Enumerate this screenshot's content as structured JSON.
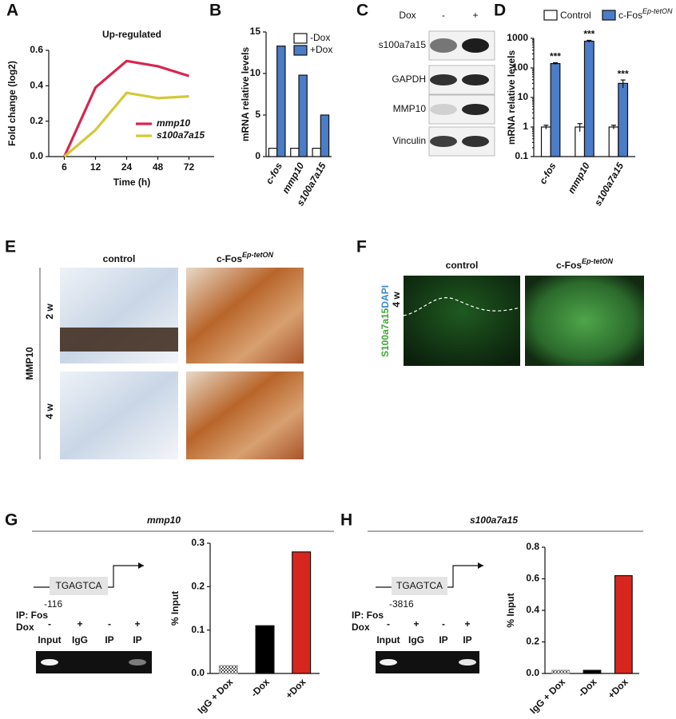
{
  "chart_data": [
    {
      "panel": "A",
      "type": "line",
      "title": "Up-regulated",
      "x_label": "Time (h)",
      "y_label": "Fold change (log2)",
      "categories": [
        "6",
        "12",
        "24",
        "48",
        "72"
      ],
      "ylim": [
        0,
        0.6
      ],
      "yticks": [
        {
          "value": 0,
          "label": "0.0"
        },
        0.2,
        0.4,
        0.6
      ],
      "series": [
        {
          "name": "mmp10",
          "color": "#d7264f",
          "values": [
            0,
            0.39,
            0.54,
            0.51,
            0.455
          ]
        },
        {
          "name": "s100a7a15",
          "color": "#d4c93a",
          "values": [
            0,
            0.15,
            0.36,
            0.33,
            0.34
          ]
        }
      ]
    },
    {
      "panel": "B",
      "type": "bar",
      "y_label": "mRNA relative levels",
      "categories": [
        "c-fos",
        "mmp10",
        "s100a7a15"
      ],
      "ylim": [
        0,
        15
      ],
      "yticks": [
        0,
        5,
        10,
        15
      ],
      "series": [
        {
          "name": "-Dox",
          "color": "#ffffff",
          "values": [
            1,
            1,
            1
          ]
        },
        {
          "name": "+Dox",
          "color": "#4a7cc7",
          "values": [
            13.3,
            9.8,
            5
          ]
        }
      ]
    },
    {
      "panel": "D",
      "type": "bar",
      "log_scale": true,
      "y_label": "mRNA relative levels",
      "categories": [
        "c-fos",
        "mmp10",
        "s100a7a15"
      ],
      "ylim": [
        0.1,
        1000
      ],
      "yticks": [
        0.1,
        1,
        10,
        100,
        1000
      ],
      "series": [
        {
          "name": "Control",
          "color": "#ffffff",
          "values": [
            1,
            1,
            1
          ],
          "errors": [
            0.15,
            0.3,
            0.15
          ]
        },
        {
          "name": "c-Fos",
          "name_superscript": "Ep-tetON",
          "color": "#4a7cc7",
          "values": [
            140,
            800,
            30
          ],
          "errors": [
            10,
            60,
            9
          ]
        }
      ],
      "annotations": [
        "***",
        "***",
        "***"
      ]
    },
    {
      "panel": "G",
      "type": "bar",
      "title": "mmp10",
      "y_label": "% Input",
      "categories": [
        "IgG + Dox",
        "-Dox",
        "+Dox"
      ],
      "values": [
        0.018,
        0.11,
        0.28
      ],
      "colors": [
        "#9a9a9a",
        "#000000",
        "#d7261e"
      ],
      "ylim": [
        0,
        0.3
      ],
      "yticks": [
        {
          "value": 0,
          "label": "0.0"
        },
        0.1,
        0.2,
        0.3
      ]
    },
    {
      "panel": "H",
      "type": "bar",
      "title": "s100a7a15",
      "y_label": "% Input",
      "categories": [
        "IgG + Dox",
        "-Dox",
        "+Dox"
      ],
      "values": [
        0.02,
        0.02,
        0.62
      ],
      "colors": [
        "#9a9a9a",
        "#000000",
        "#d7261e"
      ],
      "ylim": [
        0,
        0.8
      ],
      "yticks": [
        {
          "value": 0,
          "label": "0.0"
        },
        0.2,
        0.4,
        0.6,
        0.8
      ]
    }
  ],
  "blot": {
    "panel": "C",
    "treatment": "Dox",
    "lanes": [
      "-",
      "+"
    ],
    "rows": [
      "s100a7a15",
      "GAPDH",
      "MMP10",
      "Vinculin"
    ]
  },
  "histology": {
    "panel": "E",
    "marker": "MMP10",
    "columns": [
      {
        "text": "control"
      },
      {
        "text": "c-Fos",
        "superscript": "Ep-tetON"
      }
    ],
    "rows": [
      "2 w",
      "4 w"
    ]
  },
  "fluorescence": {
    "panel": "F",
    "stain": "S100a7a15",
    "counterstain": "DAPI",
    "columns": [
      {
        "text": "control"
      },
      {
        "text": "c-Fos",
        "superscript": "Ep-tetON"
      }
    ],
    "rows": [
      "4 w"
    ]
  },
  "chip": [
    {
      "panel": "G",
      "motif": "TGAGTCA",
      "position": "-116",
      "ip": "IP: Fos",
      "treatment": "Dox",
      "dox": [
        "-",
        "+",
        "-",
        "+"
      ],
      "lanes": [
        "Input",
        "IgG",
        "IP",
        "IP"
      ]
    },
    {
      "panel": "H",
      "motif": "TGAGTCA",
      "position": "-3816",
      "ip": "IP: Fos",
      "treatment": "Dox",
      "dox": [
        "-",
        "+",
        "-",
        "+"
      ],
      "lanes": [
        "Input",
        "IgG",
        "IP",
        "IP"
      ]
    }
  ]
}
